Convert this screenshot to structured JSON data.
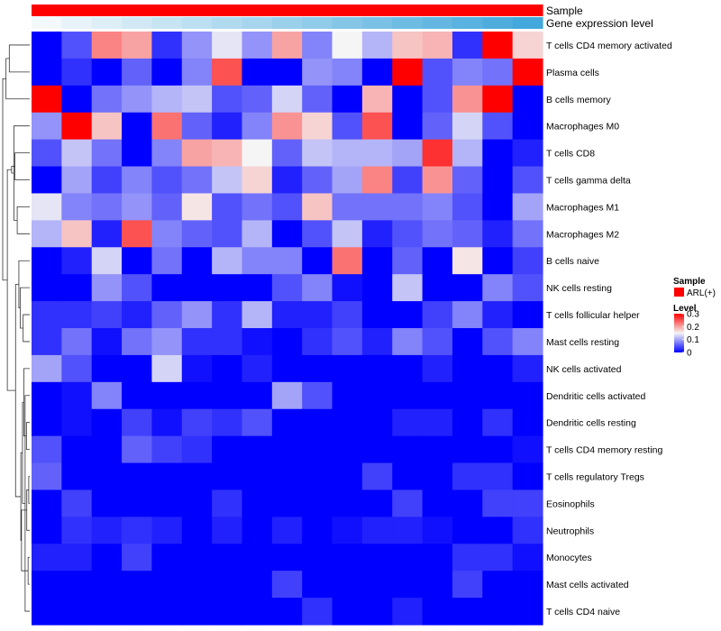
{
  "chart_data": {
    "type": "heatmap",
    "title": "",
    "rows": [
      "T cells CD4 memory activated",
      "Plasma cells",
      "B cells memory",
      "Macrophages M0",
      "T cells CD8",
      "T cells gamma delta",
      "Macrophages M1",
      "Macrophages M2",
      "B cells naive",
      "NK cells resting",
      "T cells follicular helper",
      "Mast cells resting",
      "NK cells activated",
      "Dendritic cells activated",
      "Dendritic cells resting",
      "T cells CD4 memory resting",
      "T cells regulatory  Tregs",
      "Eosinophils",
      "Neutrophils",
      "Monocytes",
      "Mast cells activated",
      "T cells CD4 naive"
    ],
    "n_columns": 17,
    "values": [
      [
        0.0,
        0.05,
        0.22,
        0.2,
        0.03,
        0.09,
        0.14,
        0.09,
        0.2,
        0.08,
        0.15,
        0.11,
        0.18,
        0.19,
        0.03,
        0.3,
        0.17
      ],
      [
        0.0,
        0.03,
        0.0,
        0.06,
        0.0,
        0.08,
        0.25,
        0.0,
        0.0,
        0.09,
        0.08,
        0.0,
        0.3,
        0.05,
        0.08,
        0.07,
        0.3
      ],
      [
        0.3,
        0.0,
        0.07,
        0.09,
        0.11,
        0.12,
        0.05,
        0.06,
        0.13,
        0.06,
        0.0,
        0.19,
        0.0,
        0.05,
        0.21,
        0.3,
        0.0
      ],
      [
        0.09,
        0.3,
        0.18,
        0.0,
        0.23,
        0.06,
        0.02,
        0.08,
        0.21,
        0.17,
        0.05,
        0.25,
        0.0,
        0.06,
        0.13,
        0.05,
        0.0
      ],
      [
        0.05,
        0.12,
        0.07,
        0.0,
        0.08,
        0.2,
        0.19,
        0.15,
        0.06,
        0.12,
        0.11,
        0.11,
        0.1,
        0.27,
        0.11,
        0.0,
        0.02
      ],
      [
        0.0,
        0.1,
        0.04,
        0.08,
        0.05,
        0.07,
        0.12,
        0.17,
        0.02,
        0.06,
        0.1,
        0.22,
        0.04,
        0.21,
        0.06,
        0.0,
        0.05
      ],
      [
        0.14,
        0.08,
        0.07,
        0.09,
        0.06,
        0.16,
        0.05,
        0.07,
        0.05,
        0.18,
        0.07,
        0.07,
        0.07,
        0.08,
        0.05,
        0.0,
        0.1
      ],
      [
        0.11,
        0.18,
        0.02,
        0.25,
        0.08,
        0.06,
        0.05,
        0.11,
        0.0,
        0.05,
        0.12,
        0.02,
        0.05,
        0.07,
        0.06,
        0.02,
        0.07
      ],
      [
        0.0,
        0.02,
        0.13,
        0.0,
        0.07,
        0.0,
        0.11,
        0.08,
        0.08,
        0.0,
        0.23,
        0.0,
        0.06,
        0.0,
        0.16,
        0.0,
        0.04
      ],
      [
        0.0,
        0.0,
        0.09,
        0.05,
        0.0,
        0.0,
        0.0,
        0.0,
        0.05,
        0.08,
        0.01,
        0.0,
        0.12,
        0.0,
        0.0,
        0.08,
        0.05
      ],
      [
        0.03,
        0.03,
        0.04,
        0.02,
        0.06,
        0.09,
        0.03,
        0.11,
        0.02,
        0.02,
        0.04,
        0.0,
        0.0,
        0.04,
        0.08,
        0.02,
        0.0
      ],
      [
        0.03,
        0.07,
        0.01,
        0.07,
        0.09,
        0.03,
        0.03,
        0.01,
        0.0,
        0.03,
        0.05,
        0.02,
        0.08,
        0.05,
        0.0,
        0.05,
        0.08
      ],
      [
        0.1,
        0.05,
        0.0,
        0.0,
        0.13,
        0.01,
        0.0,
        0.02,
        0.0,
        0.0,
        0.0,
        0.0,
        0.0,
        0.02,
        0.0,
        0.0,
        0.02
      ],
      [
        0.0,
        0.01,
        0.08,
        0.0,
        0.0,
        0.0,
        0.0,
        0.0,
        0.1,
        0.05,
        0.0,
        0.0,
        0.0,
        0.0,
        0.0,
        0.0,
        0.0
      ],
      [
        0.0,
        0.01,
        0.0,
        0.04,
        0.01,
        0.04,
        0.03,
        0.05,
        0.0,
        0.0,
        0.0,
        0.0,
        0.02,
        0.02,
        0.0,
        0.03,
        0.0
      ],
      [
        0.05,
        0.0,
        0.0,
        0.06,
        0.04,
        0.03,
        0.0,
        0.0,
        0.0,
        0.0,
        0.0,
        0.0,
        0.0,
        0.0,
        0.0,
        0.0,
        0.01
      ],
      [
        0.06,
        0.0,
        0.0,
        0.0,
        0.0,
        0.0,
        0.0,
        0.0,
        0.0,
        0.0,
        0.0,
        0.04,
        0.0,
        0.0,
        0.03,
        0.03,
        0.0
      ],
      [
        0.0,
        0.04,
        0.0,
        0.0,
        0.0,
        0.0,
        0.03,
        0.0,
        0.0,
        0.0,
        0.0,
        0.0,
        0.04,
        0.0,
        0.0,
        0.04,
        0.04
      ],
      [
        0.0,
        0.03,
        0.02,
        0.03,
        0.02,
        0.0,
        0.02,
        0.0,
        0.02,
        0.0,
        0.01,
        0.02,
        0.02,
        0.01,
        0.0,
        0.0,
        0.03
      ],
      [
        0.02,
        0.02,
        0.0,
        0.04,
        0.0,
        0.0,
        0.0,
        0.0,
        0.0,
        0.0,
        0.0,
        0.0,
        0.0,
        0.0,
        0.03,
        0.03,
        0.01
      ],
      [
        0.0,
        0.0,
        0.0,
        0.0,
        0.0,
        0.0,
        0.0,
        0.0,
        0.04,
        0.0,
        0.0,
        0.0,
        0.0,
        0.0,
        0.04,
        0.0,
        0.0
      ],
      [
        0.0,
        0.0,
        0.0,
        0.0,
        0.0,
        0.0,
        0.0,
        0.0,
        0.0,
        0.03,
        0.0,
        0.0,
        0.02,
        0.0,
        0.0,
        0.0,
        0.0
      ]
    ],
    "color_scale": {
      "min": 0,
      "mid": 0.15,
      "max": 0.3,
      "low_color": "#0000ff",
      "mid_color": "#f5f5f5",
      "high_color": "#ff0000"
    },
    "annotations": [
      {
        "label": "Sample",
        "colors": [
          "#ff0000",
          "#ff0000",
          "#ff0000",
          "#ff0000",
          "#ff0000",
          "#ff0000",
          "#ff0000",
          "#ff0000",
          "#ff0000",
          "#ff0000",
          "#ff0000",
          "#ff0000",
          "#ff0000",
          "#ff0000",
          "#ff0000",
          "#ff0000",
          "#ff0000"
        ]
      },
      {
        "label": "Gene expression level",
        "colors": [
          "#f3f8fb",
          "#e8f3f9",
          "#ddeef7",
          "#d2e9f5",
          "#c7e4f3",
          "#bcdff1",
          "#b1daef",
          "#a6d5ed",
          "#9bd0eb",
          "#90cbe9",
          "#85c6e7",
          "#7ac1e5",
          "#6fbce3",
          "#64b7e1",
          "#59b2df",
          "#4eaddd",
          "#43a8db"
        ]
      }
    ],
    "legend": {
      "sample_title": "Sample",
      "sample_items": [
        {
          "label": "ARL(+)",
          "color": "#ff0000"
        }
      ],
      "level_title": "Level",
      "level_ticks": [
        {
          "label": "0.3",
          "value": 0.3
        },
        {
          "label": "0.2",
          "value": 0.2
        },
        {
          "label": "0.1",
          "value": 0.1
        },
        {
          "label": "0",
          "value": 0
        }
      ]
    },
    "dendrogram": {
      "merges": [
        [
          -17,
          -18
        ],
        [
          -20,
          -21
        ],
        [
          -19,
          1
        ],
        [
          -15,
          -16
        ],
        [
          -14,
          -22
        ],
        [
          -13,
          4
        ],
        [
          -12,
          -11
        ],
        [
          6,
          5
        ],
        [
          3,
          2
        ],
        [
          8,
          9
        ],
        [
          -10,
          7
        ],
        [
          -9,
          11
        ],
        [
          -7,
          -8
        ],
        [
          12,
          10
        ],
        [
          -5,
          -6
        ],
        [
          -4,
          13
        ],
        [
          15,
          16
        ],
        [
          -1,
          -2
        ],
        [
          17,
          14
        ],
        [
          -3,
          18
        ],
        [
          19,
          20
        ]
      ],
      "heights": [
        0.03,
        0.05,
        0.09,
        0.1,
        0.14,
        0.18,
        0.2,
        0.22,
        0.25,
        0.27,
        0.29,
        0.33,
        0.38,
        0.43,
        0.45,
        0.48,
        0.55,
        0.62,
        0.68,
        0.72,
        0.82
      ]
    }
  }
}
